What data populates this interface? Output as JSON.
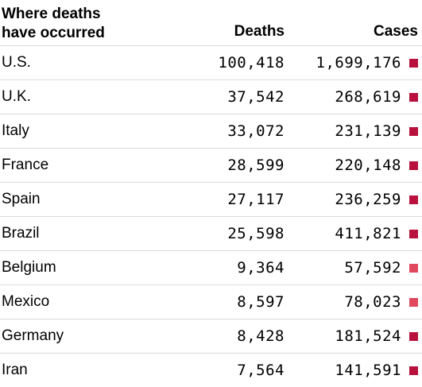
{
  "table": {
    "header_country_line1": "Where deaths",
    "header_country_line2": "have occurred",
    "header_deaths": "Deaths",
    "header_cases": "Cases"
  },
  "colors": {
    "dark_swatch": "#b8113e",
    "light_swatch": "#e0485e"
  },
  "chart_data": {
    "type": "table",
    "columns": [
      "Where deaths have occurred",
      "Deaths",
      "Cases"
    ],
    "rows": [
      {
        "country": "U.S.",
        "deaths": "100,418",
        "cases": "1,699,176",
        "swatch": "dark"
      },
      {
        "country": "U.K.",
        "deaths": "37,542",
        "cases": "268,619",
        "swatch": "dark"
      },
      {
        "country": "Italy",
        "deaths": "33,072",
        "cases": "231,139",
        "swatch": "dark"
      },
      {
        "country": "France",
        "deaths": "28,599",
        "cases": "220,148",
        "swatch": "dark"
      },
      {
        "country": "Spain",
        "deaths": "27,117",
        "cases": "236,259",
        "swatch": "dark"
      },
      {
        "country": "Brazil",
        "deaths": "25,598",
        "cases": "411,821",
        "swatch": "dark"
      },
      {
        "country": "Belgium",
        "deaths": "9,364",
        "cases": "57,592",
        "swatch": "light"
      },
      {
        "country": "Mexico",
        "deaths": "8,597",
        "cases": "78,023",
        "swatch": "light"
      },
      {
        "country": "Germany",
        "deaths": "8,428",
        "cases": "181,524",
        "swatch": "dark"
      },
      {
        "country": "Iran",
        "deaths": "7,564",
        "cases": "141,591",
        "swatch": "dark"
      }
    ]
  }
}
